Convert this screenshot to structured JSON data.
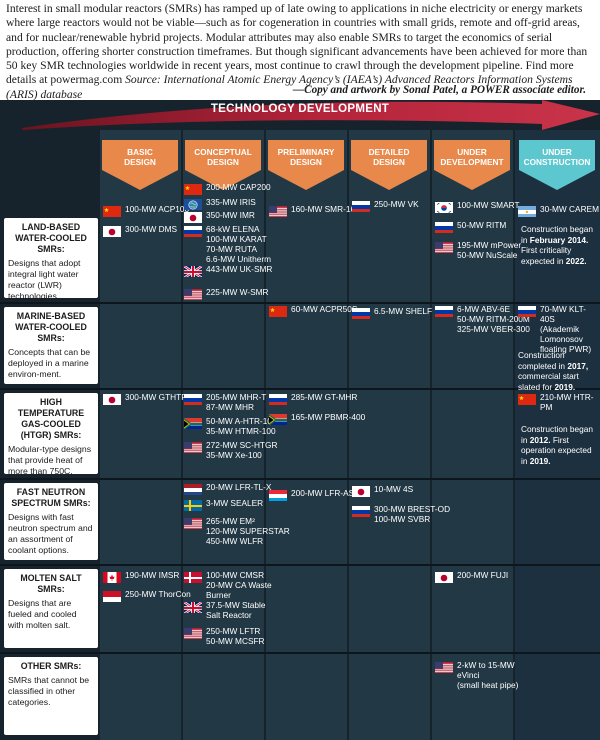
{
  "intro": {
    "text": "Interest in small modular reactors (SMRs) has ramped up of late owing to applications in niche electricity or energy markets where large reactors would not be viable—such as for cogeneration in countries with small grids, remote and off-grid areas, and for nuclear/renewable hybrid projects. Modular attributes may also enable SMRs to target the economics of serial production, offering shorter construction timeframes. But though significant advancements have been achieved for more than 50 key SMR technologies worldwide in recent years, most continue to crawl through the development pipeline. Find more details at powermag.com ",
    "source": "Source: International Atomic Energy Agency’s (IAEA’s) Advanced Reactors Information Systems (ARIS) database",
    "credit": "—Copy and artwork by Sonal Patel, a POWER associate editor."
  },
  "arrow_title": "TECHNOLOGY DEVELOPMENT",
  "stages": [
    "BASIC\nDESIGN",
    "CONCEPTUAL\nDESIGN",
    "PRELIMINARY\nDESIGN",
    "DETAILED\nDESIGN",
    "UNDER\nDEVELOPMENT",
    "UNDER\nCONSTRUCTION"
  ],
  "colors": {
    "stage_orange": "#e8884a",
    "stage_teal": "#5cc7cf",
    "arrow_red": "#b3233a",
    "panel": "#17232c",
    "column": "#223845"
  },
  "rows": [
    {
      "title": "LAND-BASED WATER-COOLED SMRs:",
      "desc": "Designs that adopt integral light water reactor (LWR) technologies."
    },
    {
      "title": "MARINE-BASED WATER-COOLED SMRs:",
      "desc": "Concepts that can be deployed in a marine environ-ment."
    },
    {
      "title": "HIGH TEMPERATURE GAS-COOLED (HTGR) SMRs:",
      "desc": "Modular-type designs that provide heat of more than 750C."
    },
    {
      "title": "FAST NEUTRON SPECTRUM SMRs:",
      "desc": "Designs with fast neutron spectrum and an assortment of coolant options."
    },
    {
      "title": "MOLTEN SALT SMRs:",
      "desc": "Designs that are fueled and cooled with molten salt."
    },
    {
      "title": "OTHER SMRs:",
      "desc": "SMRs that cannot be classified in other categories."
    }
  ],
  "entries": [
    {
      "flag": "cn",
      "text": "100-MW ACP100"
    },
    {
      "flag": "jp",
      "text": "300-MW DMS"
    },
    {
      "flag": "cn",
      "text": "200-MW CAP200"
    },
    {
      "flag": "intl",
      "text": "335-MW IRIS"
    },
    {
      "flag": "jp",
      "text": "350-MW IMR"
    },
    {
      "flag": "ru",
      "text": "68-kW ELENA\n100-MW KARAT\n70-MW RUTA\n6.6-MW Unitherm"
    },
    {
      "flag": "uk",
      "text": "443-MW UK-SMR"
    },
    {
      "flag": "us",
      "text": "225-MW W-SMR"
    },
    {
      "flag": "us",
      "text": "160-MW SMR-160"
    },
    {
      "flag": "ru",
      "text": "250-MW VK"
    },
    {
      "flag": "kr",
      "text": "100-MW SMART"
    },
    {
      "flag": "ru",
      "text": "50-MW RITM"
    },
    {
      "flag": "us",
      "text": "195-MW mPower\n50-MW NuScale"
    },
    {
      "flag": "ar",
      "text": "30-MW CAREM"
    },
    {
      "flag": "cn",
      "text": "60-MW ACPR50S"
    },
    {
      "flag": "ru",
      "text": "6.5-MW SHELF"
    },
    {
      "flag": "ru",
      "text": "6-MW ABV-6E\n50-MW RITM-200M\n325-MW VBER-300"
    },
    {
      "flag": "ru",
      "text": "70-MW KLT-40S\n(Akademik\nLomonosov\nfloating PWR)"
    },
    {
      "flag": "jp",
      "text": "300-MW GTHTR300"
    },
    {
      "flag": "ru",
      "text": "205-MW MHR-T\n87-MW MHR"
    },
    {
      "flag": "za",
      "text": "50-MW A-HTR-100\n35-MW HTMR-100"
    },
    {
      "flag": "us",
      "text": "272-MW SC-HTGR\n35-MW Xe-100"
    },
    {
      "flag": "ru",
      "text": "285-MW GT-MHR"
    },
    {
      "flag": "za",
      "text": "165-MW PBMR-400"
    },
    {
      "flag": "cn",
      "text": "210-MW HTR-PM"
    },
    {
      "flag": "nl",
      "text": "20-MW LFR-TL-X"
    },
    {
      "flag": "se",
      "text": "3-MW SEALER"
    },
    {
      "flag": "us",
      "text": "265-MW EM²\n120-MW SUPERSTAR\n450-MW WLFR"
    },
    {
      "flag": "lu",
      "text": "200-MW LFR-AS"
    },
    {
      "flag": "jp",
      "text": "10-MW 4S"
    },
    {
      "flag": "ru",
      "text": "300-MW BREST-OD\n100-MW SVBR"
    },
    {
      "flag": "ca",
      "text": "190-MW IMSR"
    },
    {
      "flag": "id",
      "text": "250-MW ThorCon"
    },
    {
      "flag": "dk",
      "text": "100-MW CMSR\n20-MW CA Waste\nBurner"
    },
    {
      "flag": "uk",
      "text": "37.5-MW Stable\nSalt Reactor"
    },
    {
      "flag": "us",
      "text": "250-MW LFTR\n50-MW MCSFR"
    },
    {
      "flag": "jp",
      "text": "200-MW FUJI"
    },
    {
      "flag": "us",
      "text": "2-kW to 15-MW\neVinci\n(small heat pipe)"
    }
  ],
  "notes": [
    {
      "pre": "Construction began in ",
      "bold": "February 2014.",
      "post": " First criticality expected in ",
      "bold2": "2022."
    },
    {
      "pre": "Construction completed in ",
      "bold": "2017,",
      "post": " commercial start slated for ",
      "bold2": "2019."
    },
    {
      "pre": "Construction began in ",
      "bold": "2012.",
      "post": " First operation expected in ",
      "bold2": "2019."
    }
  ]
}
